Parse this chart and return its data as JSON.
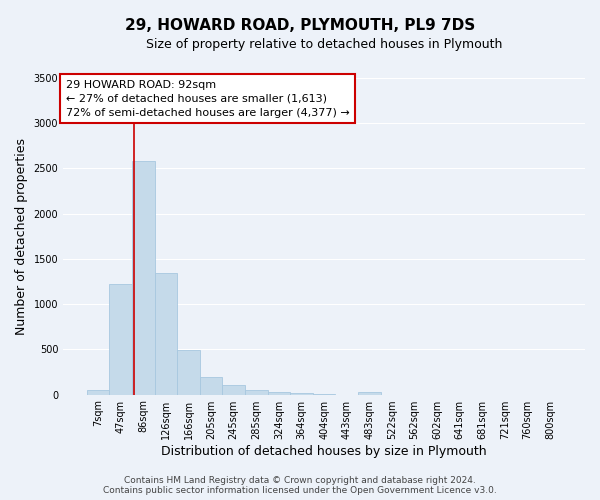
{
  "title": "29, HOWARD ROAD, PLYMOUTH, PL9 7DS",
  "subtitle": "Size of property relative to detached houses in Plymouth",
  "xlabel": "Distribution of detached houses by size in Plymouth",
  "ylabel": "Number of detached properties",
  "bar_labels": [
    "7sqm",
    "47sqm",
    "86sqm",
    "126sqm",
    "166sqm",
    "205sqm",
    "245sqm",
    "285sqm",
    "324sqm",
    "364sqm",
    "404sqm",
    "443sqm",
    "483sqm",
    "522sqm",
    "562sqm",
    "602sqm",
    "641sqm",
    "681sqm",
    "721sqm",
    "760sqm",
    "800sqm"
  ],
  "bar_values": [
    50,
    1220,
    2580,
    1340,
    490,
    195,
    110,
    55,
    30,
    20,
    10,
    0,
    25,
    0,
    0,
    0,
    0,
    0,
    0,
    0,
    0
  ],
  "bar_color": "#c5daea",
  "bar_edgecolor": "#a8c8e0",
  "vline_position": 1.575,
  "vline_color": "#cc0000",
  "annotation_title": "29 HOWARD ROAD: 92sqm",
  "annotation_line1": "← 27% of detached houses are smaller (1,613)",
  "annotation_line2": "72% of semi-detached houses are larger (4,377) →",
  "annotation_box_edgecolor": "#cc0000",
  "ylim": [
    0,
    3500
  ],
  "yticks": [
    0,
    500,
    1000,
    1500,
    2000,
    2500,
    3000,
    3500
  ],
  "background_color": "#edf2f9",
  "grid_color": "#ffffff",
  "title_fontsize": 11,
  "subtitle_fontsize": 9,
  "axis_label_fontsize": 9,
  "tick_fontsize": 7,
  "annotation_fontsize": 8,
  "footer_fontsize": 6.5
}
